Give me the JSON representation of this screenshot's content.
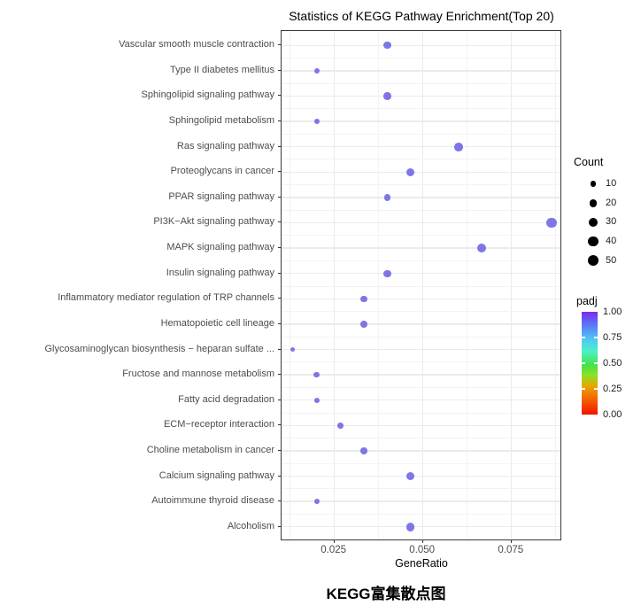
{
  "title": "Statistics of KEGG Pathway Enrichment(Top 20)",
  "caption": "KEGG富集散点图",
  "colors": {
    "dot": "#7e76e6",
    "panel_border": "#383838",
    "grid_major": "#ebebeb",
    "grid_minor": "#f3f3f3",
    "axis_text": "#4d4d4d",
    "legend_dot": "#000000",
    "padj_scale": [
      "#7d2ae8",
      "#5a78f8",
      "#4ec9f2",
      "#4fefc8",
      "#43e34a",
      "#8fe022",
      "#e8a800",
      "#f56700",
      "#f21300"
    ]
  },
  "chart_data": {
    "type": "scatter",
    "title": "Statistics of KEGG Pathway Enrichment(Top 20)",
    "xlabel": "GeneRatio",
    "ylabel": "",
    "xlim": [
      0.0101,
      0.0893
    ],
    "x_ticks": [
      0.025,
      0.05,
      0.075
    ],
    "x_tick_labels": [
      "0.025",
      "0.050",
      "0.075"
    ],
    "x_minor_ticks": [
      0.0125,
      0.0375,
      0.0625,
      0.0875
    ],
    "grid": true,
    "legend_position": "right",
    "categories": [
      "Vascular smooth muscle contraction",
      "Type II diabetes mellitus",
      "Sphingolipid signaling pathway",
      "Sphingolipid metabolism",
      "Ras signaling pathway",
      "Proteoglycans in cancer",
      "PPAR signaling pathway",
      "PI3K−Akt signaling pathway",
      "MAPK signaling pathway",
      "Insulin signaling pathway",
      "Inflammatory mediator regulation of TRP channels",
      "Hematopoietic cell lineage",
      "Glycosaminoglycan biosynthesis − heparan sulfate ...",
      "Fructose and mannose metabolism",
      "Fatty acid degradation",
      "ECM−receptor interaction",
      "Choline metabolism in cancer",
      "Calcium signaling pathway",
      "Autoimmune thyroid disease",
      "Alcoholism"
    ],
    "points": [
      {
        "pathway": "Vascular smooth muscle contraction",
        "gene_ratio": 0.04,
        "count": 18,
        "padj": 1.0
      },
      {
        "pathway": "Type II diabetes mellitus",
        "gene_ratio": 0.02,
        "count": 7,
        "padj": 1.0
      },
      {
        "pathway": "Sphingolipid signaling pathway",
        "gene_ratio": 0.04,
        "count": 18,
        "padj": 1.0
      },
      {
        "pathway": "Sphingolipid metabolism",
        "gene_ratio": 0.02,
        "count": 7,
        "padj": 1.0
      },
      {
        "pathway": "Ras signaling pathway",
        "gene_ratio": 0.06,
        "count": 27,
        "padj": 1.0
      },
      {
        "pathway": "Proteoglycans in cancer",
        "gene_ratio": 0.0465,
        "count": 22,
        "padj": 1.0
      },
      {
        "pathway": "PPAR signaling pathway",
        "gene_ratio": 0.04,
        "count": 14,
        "padj": 1.0
      },
      {
        "pathway": "PI3K−Akt signaling pathway",
        "gene_ratio": 0.0863,
        "count": 37,
        "padj": 1.0
      },
      {
        "pathway": "MAPK signaling pathway",
        "gene_ratio": 0.0665,
        "count": 30,
        "padj": 1.0
      },
      {
        "pathway": "Insulin signaling pathway",
        "gene_ratio": 0.04,
        "count": 18,
        "padj": 1.0
      },
      {
        "pathway": "Inflammatory mediator regulation of TRP channels",
        "gene_ratio": 0.0333,
        "count": 14,
        "padj": 1.0
      },
      {
        "pathway": "Hematopoietic cell lineage",
        "gene_ratio": 0.0333,
        "count": 14,
        "padj": 1.0
      },
      {
        "pathway": "Glycosaminoglycan biosynthesis − heparan sulfate ...",
        "gene_ratio": 0.0133,
        "count": 4,
        "padj": 1.0
      },
      {
        "pathway": "Fructose and mannose metabolism",
        "gene_ratio": 0.02,
        "count": 9,
        "padj": 1.0
      },
      {
        "pathway": "Fatty acid degradation",
        "gene_ratio": 0.02,
        "count": 8,
        "padj": 1.0
      },
      {
        "pathway": "ECM−receptor interaction",
        "gene_ratio": 0.0267,
        "count": 10,
        "padj": 1.0
      },
      {
        "pathway": "Choline metabolism in cancer",
        "gene_ratio": 0.0333,
        "count": 13,
        "padj": 1.0
      },
      {
        "pathway": "Calcium signaling pathway",
        "gene_ratio": 0.0465,
        "count": 25,
        "padj": 1.0
      },
      {
        "pathway": "Autoimmune thyroid disease",
        "gene_ratio": 0.02,
        "count": 8,
        "padj": 1.0
      },
      {
        "pathway": "Alcoholism",
        "gene_ratio": 0.0465,
        "count": 25,
        "padj": 1.0
      }
    ],
    "legend_size": {
      "title": "Count",
      "values": [
        10,
        20,
        30,
        40,
        50
      ]
    },
    "legend_color": {
      "title": "padj",
      "tick_labels": [
        "1.00",
        "0.75",
        "0.50",
        "0.25",
        "0.00"
      ],
      "range": [
        0.0,
        1.0
      ],
      "scale_description": "rainbow: red(0.00) to purple(1.00)"
    }
  }
}
